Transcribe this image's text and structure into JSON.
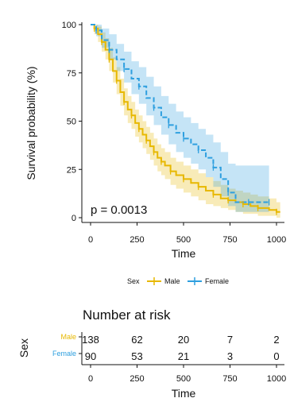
{
  "chart_data": {
    "type": "line",
    "subtype": "kaplan-meier survival curve with confidence bands",
    "xlabel": "Time",
    "ylabel": "Survival probability (%)",
    "xlim": [
      0,
      1000
    ],
    "ylim": [
      0,
      100
    ],
    "x_ticks": [
      "0",
      "250",
      "500",
      "750",
      "1000"
    ],
    "y_ticks": [
      "0",
      "25",
      "50",
      "75",
      "100"
    ],
    "grid": false,
    "annotation": "p = 0.0013",
    "legend": {
      "title": "Sex",
      "placement": "bottom",
      "entries": [
        "Male",
        "Female"
      ]
    },
    "series": [
      {
        "name": "Male",
        "color": "#E7B800",
        "line_style": "solid",
        "x": [
          0,
          20,
          40,
          60,
          80,
          100,
          120,
          140,
          160,
          180,
          200,
          220,
          240,
          260,
          280,
          300,
          320,
          340,
          360,
          380,
          400,
          430,
          460,
          500,
          540,
          580,
          620,
          660,
          700,
          740,
          780,
          820,
          860,
          900,
          960,
          1000,
          1020
        ],
        "y": [
          100,
          98,
          95,
          91,
          87,
          82,
          76,
          71,
          65,
          60,
          56,
          53,
          49,
          46,
          43,
          40,
          37,
          34,
          31,
          29,
          27,
          24,
          22,
          20,
          18,
          16,
          14,
          12,
          10,
          9,
          8,
          7,
          6,
          5,
          4,
          3,
          3
        ],
        "lower": [
          100,
          95,
          91,
          86,
          82,
          76,
          70,
          64,
          58,
          53,
          49,
          46,
          42,
          39,
          36,
          33,
          30,
          27,
          24,
          22,
          20,
          17,
          15,
          13,
          11,
          9,
          7,
          6,
          5,
          4,
          3,
          2,
          2,
          1,
          1,
          0,
          0
        ],
        "upper": [
          100,
          100,
          99,
          96,
          93,
          88,
          83,
          78,
          72,
          67,
          63,
          60,
          56,
          53,
          50,
          47,
          44,
          41,
          38,
          36,
          34,
          31,
          29,
          27,
          25,
          23,
          21,
          19,
          17,
          15,
          14,
          13,
          12,
          11,
          10,
          8,
          8
        ]
      },
      {
        "name": "Female",
        "color": "#2E9FDF",
        "line_style": "dashed",
        "x": [
          0,
          30,
          60,
          100,
          140,
          180,
          220,
          260,
          300,
          340,
          380,
          420,
          460,
          500,
          540,
          580,
          620,
          660,
          700,
          740,
          780,
          850,
          900,
          960
        ],
        "y": [
          100,
          97,
          92,
          87,
          82,
          77,
          72,
          68,
          62,
          57,
          52,
          48,
          44,
          41,
          38,
          35,
          31,
          26,
          20,
          13,
          8,
          8,
          8,
          8
        ],
        "lower": [
          100,
          94,
          88,
          82,
          76,
          70,
          64,
          59,
          53,
          48,
          43,
          38,
          34,
          31,
          28,
          25,
          21,
          16,
          11,
          6,
          3,
          3,
          3,
          3
        ],
        "upper": [
          100,
          100,
          98,
          95,
          90,
          86,
          81,
          78,
          73,
          68,
          63,
          59,
          55,
          52,
          49,
          46,
          43,
          39,
          34,
          28,
          27,
          27,
          27,
          27
        ]
      }
    ],
    "risk_table": {
      "title": "Number at risk",
      "strata_label": "Sex",
      "times": [
        "0",
        "250",
        "500",
        "750",
        "1000"
      ],
      "rows": [
        {
          "name": "Male",
          "color": "#E7B800",
          "counts": [
            "138",
            "62",
            "20",
            "7",
            "2"
          ]
        },
        {
          "name": "Female",
          "color": "#2E9FDF",
          "counts": [
            "90",
            "53",
            "21",
            "3",
            "0"
          ]
        }
      ],
      "xlabel": "Time"
    }
  }
}
